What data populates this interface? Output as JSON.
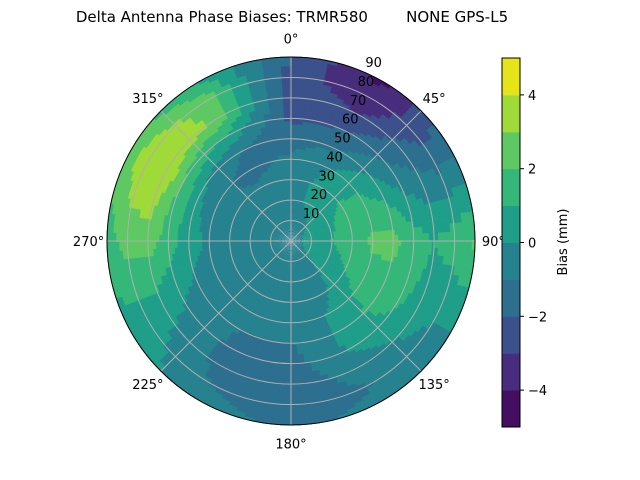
{
  "chart_data": {
    "type": "heatmap",
    "projection": "polar",
    "title": "Delta Antenna Phase Biases: TRMR580        NONE GPS-L5",
    "theta_zero": "north",
    "theta_direction": "clockwise",
    "theta_tick_labels": [
      "0°",
      "45°",
      "90°",
      "135°",
      "180°",
      "225°",
      "270°",
      "315°"
    ],
    "radial_tick_labels": [
      "10",
      "20",
      "30",
      "40",
      "50",
      "60",
      "70",
      "80",
      "90"
    ],
    "rlim": [
      0,
      90
    ],
    "grid": true,
    "colorbar": {
      "label": "Bias (mm)",
      "levels": [
        -5,
        -4,
        -3,
        -2,
        -1,
        0,
        1,
        2,
        3,
        4,
        5
      ],
      "tick_labels": [
        "−4",
        "−2",
        "0",
        "2",
        "4"
      ],
      "ticks": [
        -4,
        -2,
        0,
        2,
        4
      ],
      "colormap": "viridis",
      "colors": [
        "#440f62",
        "#472d7b",
        "#3b518b",
        "#2d6f8e",
        "#26828e",
        "#1f9e89",
        "#35b779",
        "#5ec962",
        "#a0da39",
        "#e5e419"
      ]
    },
    "azimuth_deg": [
      0,
      30,
      60,
      90,
      120,
      150,
      180,
      210,
      240,
      270,
      300,
      330
    ],
    "zenith_deg": [
      0,
      10,
      20,
      30,
      40,
      50,
      60,
      70,
      80,
      90
    ],
    "bias_mm": [
      [
        -0.5,
        -0.5,
        -0.5,
        -0.5,
        -0.5,
        -0.5,
        -0.5,
        -0.5,
        -0.5,
        -0.5,
        -0.5,
        -0.5
      ],
      [
        -0.4,
        -0.2,
        0.2,
        0.4,
        0.2,
        -0.4,
        -0.5,
        -0.5,
        -0.5,
        -0.5,
        -0.5,
        -0.5
      ],
      [
        -0.3,
        0.2,
        0.8,
        1.0,
        0.6,
        -0.4,
        -0.6,
        -0.6,
        -0.6,
        -0.6,
        -0.7,
        -0.6
      ],
      [
        -0.5,
        0.3,
        1.3,
        1.5,
        1.0,
        -0.3,
        -0.7,
        -0.7,
        -0.6,
        -0.5,
        -0.8,
        -0.9
      ],
      [
        -0.8,
        0.0,
        1.2,
        2.2,
        1.5,
        0.2,
        -0.8,
        -0.8,
        -0.5,
        -0.2,
        -0.8,
        -1.3
      ],
      [
        -1.5,
        -1.0,
        0.5,
        2.3,
        1.6,
        0.3,
        -1.0,
        -1.0,
        -0.4,
        0.5,
        0.2,
        -1.0
      ],
      [
        -2.2,
        -2.0,
        -0.5,
        1.5,
        1.2,
        0.2,
        -1.4,
        -1.2,
        0.0,
        1.5,
        2.0,
        0.8
      ],
      [
        -2.5,
        -3.0,
        -1.0,
        1.0,
        0.5,
        -0.5,
        -1.6,
        -1.3,
        0.3,
        2.5,
        4.1,
        2.8
      ],
      [
        -2.5,
        -3.8,
        -1.5,
        1.5,
        0.0,
        -1.0,
        -1.5,
        -1.0,
        0.5,
        2.5,
        3.8,
        2.5
      ],
      [
        -2.0,
        -4.2,
        -1.2,
        2.2,
        0.0,
        -0.8,
        -1.2,
        -0.6,
        0.6,
        1.5,
        2.5,
        1.0
      ]
    ]
  }
}
